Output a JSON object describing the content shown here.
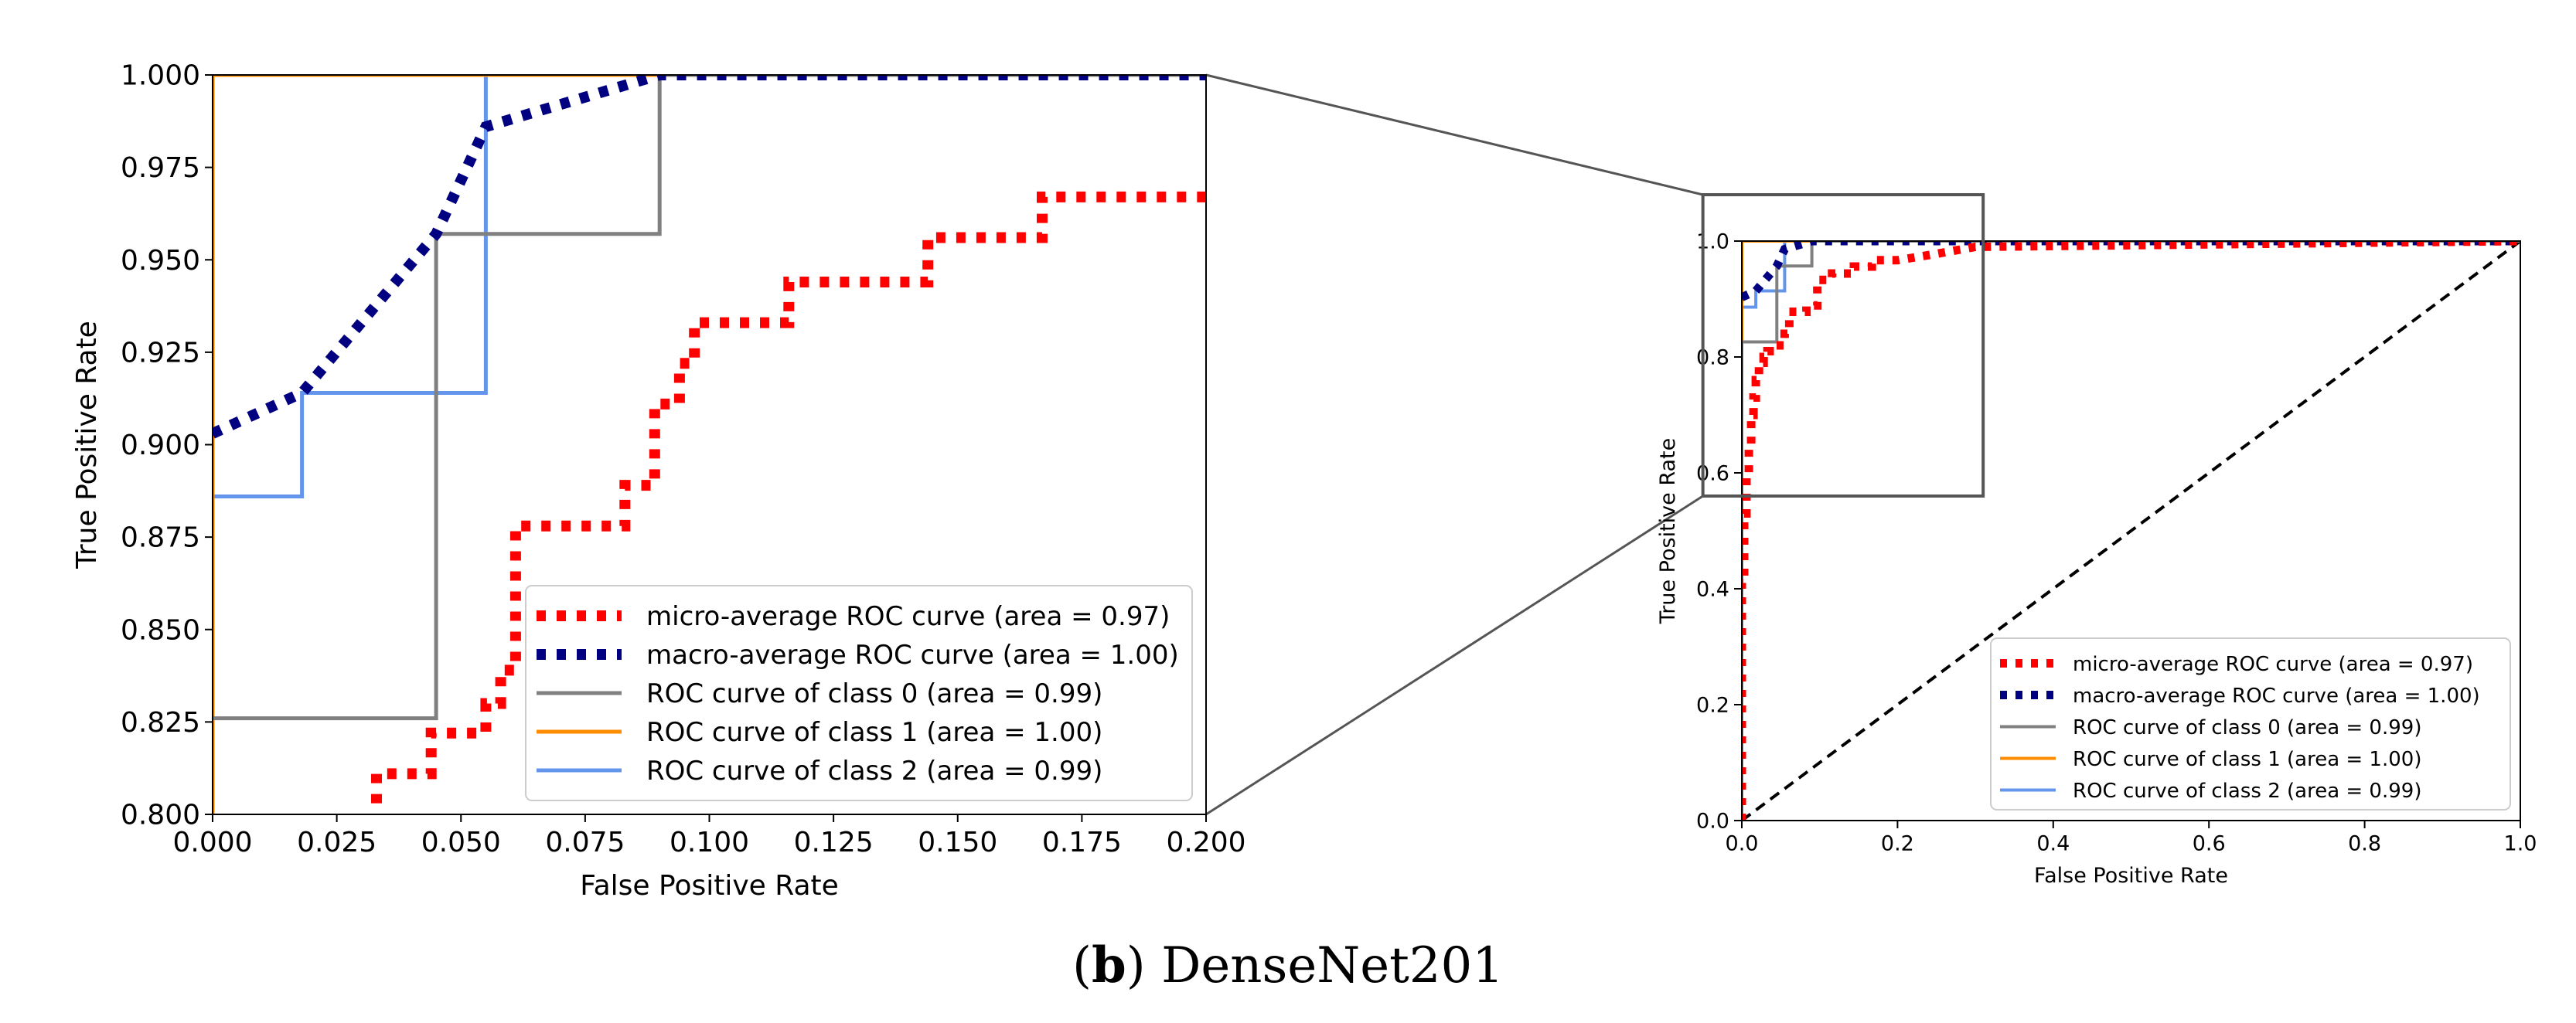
{
  "caption": {
    "letter": "b",
    "text": "DenseNet201"
  },
  "colors": {
    "micro": "#ff0000",
    "macro": "#000080",
    "class0": "#808080",
    "class1": "#ff8c00",
    "class2": "#6495ed",
    "chance": "#000000"
  },
  "chart_data": [
    {
      "type": "line",
      "xlabel": "False Positive Rate",
      "ylabel": "True Positive Rate",
      "xlim": [
        0.0,
        0.2
      ],
      "ylim": [
        0.8,
        1.0
      ],
      "xticks": [
        "0.000",
        "0.025",
        "0.050",
        "0.075",
        "0.100",
        "0.125",
        "0.150",
        "0.175",
        "0.200"
      ],
      "yticks": [
        "0.800",
        "0.825",
        "0.850",
        "0.875",
        "0.900",
        "0.925",
        "0.950",
        "0.975",
        "1.000"
      ],
      "legend_position": "lower-right",
      "series": [
        {
          "name": "micro-average ROC curve (area = 0.97)",
          "style": "dotted",
          "x": [
            0.033,
            0.033,
            0.044,
            0.044,
            0.055,
            0.055,
            0.058,
            0.058,
            0.061,
            0.061,
            0.083,
            0.083,
            0.089,
            0.089,
            0.094,
            0.094,
            0.097,
            0.097,
            0.116,
            0.116,
            0.144,
            0.144,
            0.167,
            0.167,
            0.2
          ],
          "y": [
            0.803,
            0.811,
            0.811,
            0.822,
            0.822,
            0.83,
            0.83,
            0.839,
            0.839,
            0.878,
            0.878,
            0.889,
            0.889,
            0.911,
            0.911,
            0.922,
            0.922,
            0.933,
            0.933,
            0.944,
            0.944,
            0.956,
            0.956,
            0.967,
            0.967
          ]
        },
        {
          "name": "macro-average ROC curve (area = 1.00)",
          "style": "dotted",
          "x": [
            0.0,
            0.018,
            0.045,
            0.055,
            0.09,
            0.2
          ],
          "y": [
            0.903,
            0.914,
            0.957,
            0.986,
            1.0,
            1.0
          ]
        },
        {
          "name": "ROC curve of class 0 (area = 0.99)",
          "style": "solid",
          "x": [
            0.0,
            0.045,
            0.045,
            0.09,
            0.09,
            0.2
          ],
          "y": [
            0.826,
            0.826,
            0.957,
            0.957,
            1.0,
            1.0
          ]
        },
        {
          "name": "ROC curve of class 1 (area = 1.00)",
          "style": "solid",
          "x": [
            0.0,
            0.0,
            0.2
          ],
          "y": [
            0.8,
            1.0,
            1.0
          ]
        },
        {
          "name": "ROC curve of class 2 (area = 0.99)",
          "style": "solid",
          "x": [
            0.0,
            0.018,
            0.018,
            0.055,
            0.055,
            0.2
          ],
          "y": [
            0.886,
            0.886,
            0.914,
            0.914,
            1.0,
            1.0
          ]
        }
      ]
    },
    {
      "type": "line",
      "xlabel": "False Positive Rate",
      "ylabel": "True Positive Rate",
      "xlim": [
        0.0,
        1.0
      ],
      "ylim": [
        0.0,
        1.0
      ],
      "xticks": [
        "0.0",
        "0.2",
        "0.4",
        "0.6",
        "0.8",
        "1.0"
      ],
      "yticks": [
        "0.0",
        "0.2",
        "0.4",
        "0.6",
        "0.8",
        "1.0"
      ],
      "legend_position": "lower-right",
      "series": [
        {
          "name": "micro-average ROC curve (area = 0.97)",
          "style": "dotted",
          "x": [
            0.0,
            0.0,
            0.003,
            0.003,
            0.006,
            0.006,
            0.009,
            0.009,
            0.012,
            0.012,
            0.015,
            0.015,
            0.018,
            0.018,
            0.022,
            0.022,
            0.028,
            0.028,
            0.033,
            0.033,
            0.044,
            0.044,
            0.055,
            0.055,
            0.061,
            0.061,
            0.083,
            0.083,
            0.097,
            0.097,
            0.116,
            0.116,
            0.144,
            0.144,
            0.167,
            0.167,
            0.2,
            0.25,
            0.3,
            1.0
          ],
          "y": [
            0.0,
            0.41,
            0.41,
            0.53,
            0.53,
            0.6,
            0.6,
            0.65,
            0.65,
            0.7,
            0.7,
            0.73,
            0.73,
            0.76,
            0.76,
            0.79,
            0.79,
            0.8,
            0.8,
            0.81,
            0.81,
            0.82,
            0.82,
            0.84,
            0.84,
            0.878,
            0.878,
            0.889,
            0.889,
            0.933,
            0.933,
            0.944,
            0.944,
            0.956,
            0.956,
            0.967,
            0.967,
            0.978,
            0.99,
            1.0
          ]
        },
        {
          "name": "macro-average ROC curve (area = 1.00)",
          "style": "dotted",
          "x": [
            0.0,
            0.018,
            0.045,
            0.055,
            0.09,
            1.0
          ],
          "y": [
            0.903,
            0.914,
            0.957,
            0.986,
            1.0,
            1.0
          ]
        },
        {
          "name": "ROC curve of class 0 (area = 0.99)",
          "style": "solid",
          "x": [
            0.0,
            0.0,
            0.045,
            0.045,
            0.09,
            0.09,
            1.0
          ],
          "y": [
            0.0,
            0.826,
            0.826,
            0.957,
            0.957,
            1.0,
            1.0
          ]
        },
        {
          "name": "ROC curve of class 1 (area = 1.00)",
          "style": "solid",
          "x": [
            0.0,
            0.0,
            1.0
          ],
          "y": [
            0.0,
            1.0,
            1.0
          ]
        },
        {
          "name": "ROC curve of class 2 (area = 0.99)",
          "style": "solid",
          "x": [
            0.0,
            0.0,
            0.018,
            0.018,
            0.055,
            0.055,
            1.0
          ],
          "y": [
            0.0,
            0.886,
            0.886,
            0.914,
            0.914,
            1.0,
            1.0
          ]
        },
        {
          "name": "",
          "style": "dashed",
          "in_legend": false,
          "x": [
            0.0,
            1.0
          ],
          "y": [
            0.0,
            1.0
          ]
        }
      ]
    }
  ]
}
